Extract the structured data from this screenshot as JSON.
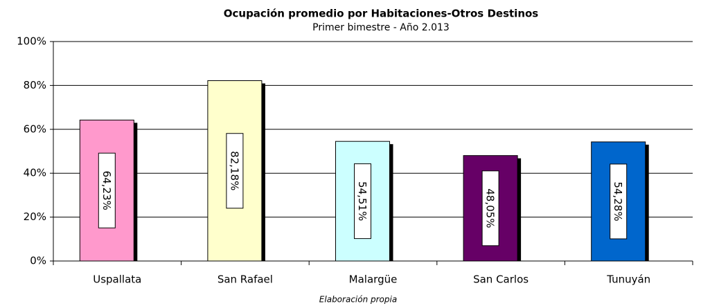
{
  "chart_data": {
    "type": "bar",
    "title": "Ocupación  promedio por Habitaciones-Otros Destinos",
    "subtitle": "Primer bimestre - Año 2.013",
    "caption": "Elaboración propia",
    "categories": [
      "Uspallata",
      "San Rafael",
      "Malargüe",
      "San Carlos",
      "Tunuyán"
    ],
    "values": [
      64.23,
      82.18,
      54.51,
      48.05,
      54.28
    ],
    "value_labels": [
      "64,23%",
      "82,18%",
      "54,51%",
      "48,05%",
      "54,28%"
    ],
    "colors": [
      "#ff99cc",
      "#ffffcc",
      "#ccffff",
      "#660066",
      "#0066cc"
    ],
    "ylim": [
      0,
      100
    ],
    "yticks": [
      {
        "value": 0,
        "label": "0%"
      },
      {
        "value": 20,
        "label": "20%"
      },
      {
        "value": 40,
        "label": "40%"
      },
      {
        "value": 60,
        "label": "60%"
      },
      {
        "value": 80,
        "label": "80%"
      },
      {
        "value": 100,
        "label": "100%"
      }
    ],
    "grid": true
  }
}
